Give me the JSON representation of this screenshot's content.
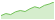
{
  "chart_data": {
    "type": "area",
    "x": [
      0,
      1,
      2,
      3,
      4,
      5,
      6,
      7,
      8,
      9,
      10,
      11
    ],
    "values": [
      2,
      3.2,
      2.6,
      4.2,
      5,
      4.4,
      6,
      7.2,
      6.4,
      8,
      8.8,
      10
    ],
    "xlim": [
      0,
      11
    ],
    "ylim": [
      0,
      10
    ],
    "color": "#74c25a",
    "tick_labels": false,
    "grid": false
  }
}
